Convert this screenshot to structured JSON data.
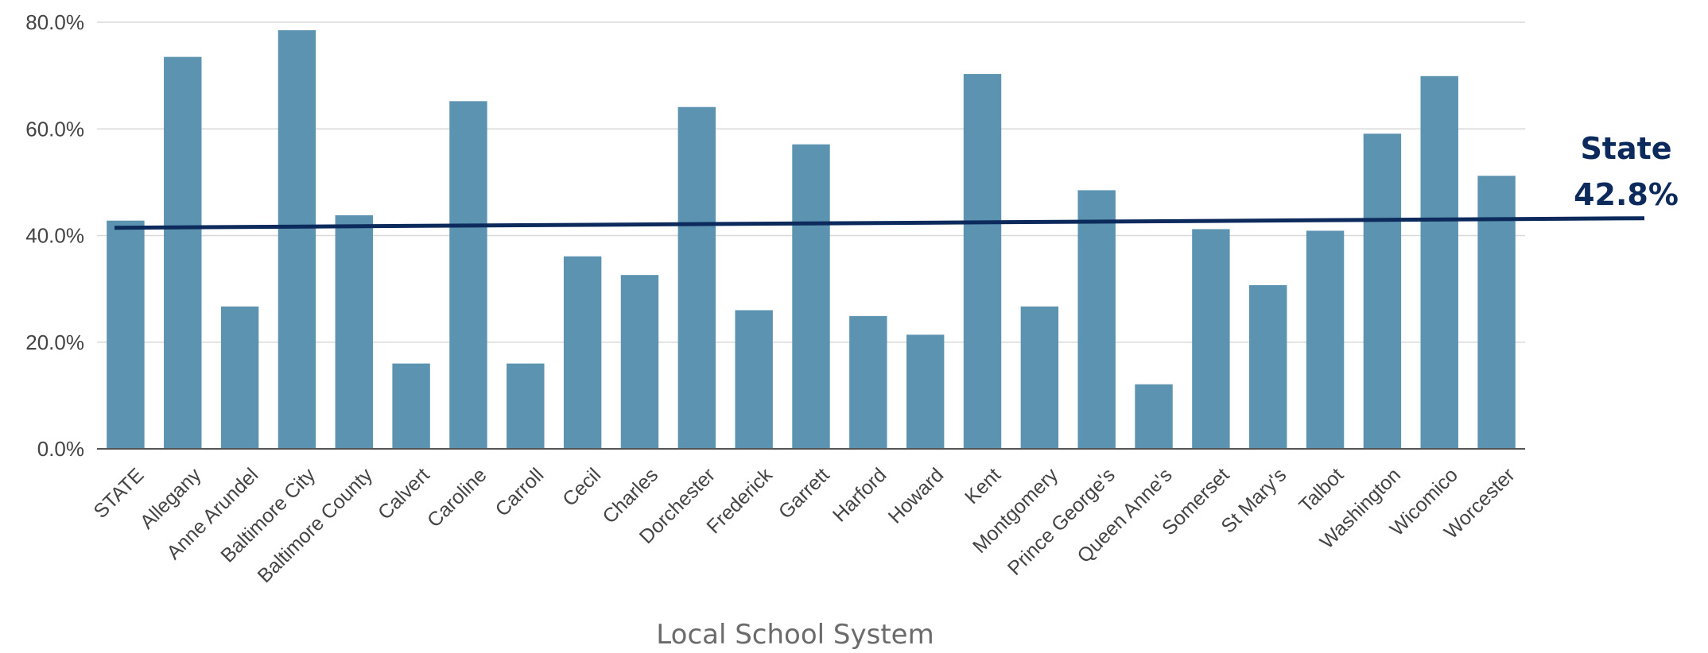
{
  "chart_data": {
    "type": "bar",
    "xlabel": "Local School System",
    "ylabel": "",
    "ylim": [
      0,
      80
    ],
    "y_ticks": [
      "0.0%",
      "20.0%",
      "40.0%",
      "60.0%",
      "80.0%"
    ],
    "grid": true,
    "categories": [
      "STATE",
      "Allegany",
      "Anne Arundel",
      "Baltimore City",
      "Baltimore County",
      "Calvert",
      "Caroline",
      "Carroll",
      "Cecil",
      "Charles",
      "Dorchester",
      "Frederick",
      "Garrett",
      "Harford",
      "Howard",
      "Kent",
      "Montgomery",
      "Prince George's",
      "Queen Anne's",
      "Somerset",
      "St Mary's",
      "Talbot",
      "Washington",
      "Wicomico",
      "Worcester"
    ],
    "values": [
      42.8,
      73.5,
      26.7,
      78.5,
      43.8,
      16.0,
      65.2,
      16.0,
      36.1,
      32.6,
      64.1,
      26.0,
      57.1,
      24.9,
      21.4,
      70.3,
      26.7,
      48.5,
      12.1,
      41.2,
      30.7,
      40.9,
      59.1,
      69.9,
      51.2
    ],
    "bar_color": "#5b93b0",
    "reference_line": {
      "value": 42.8,
      "label_line1": "State",
      "label_line2": "42.8%",
      "color": "#0d2a5c"
    }
  }
}
